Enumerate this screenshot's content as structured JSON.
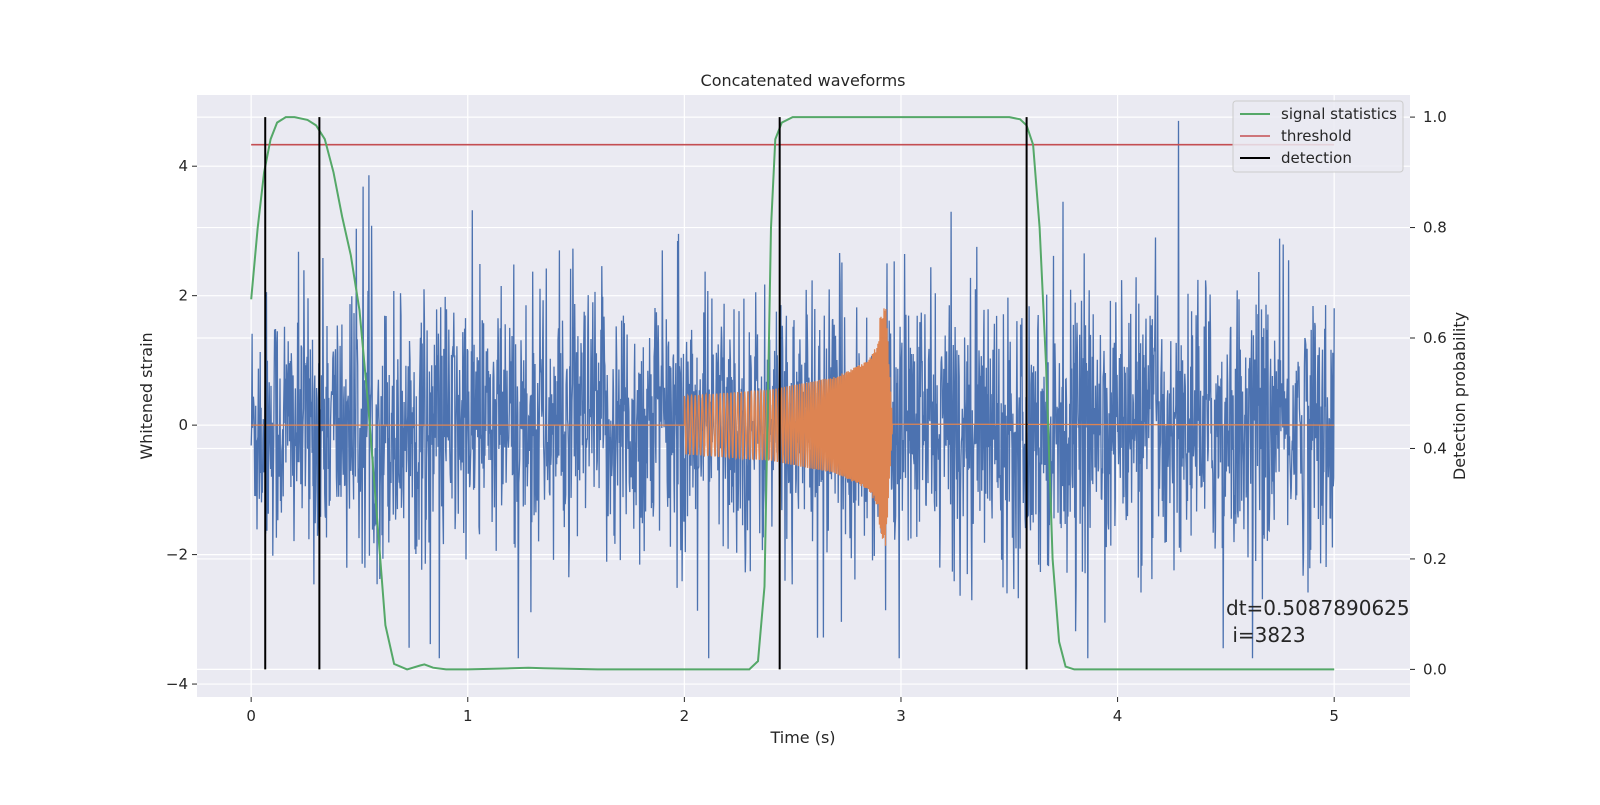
{
  "chart_data": {
    "type": "line",
    "title": "Concatenated waveforms",
    "xlabel": "Time (s)",
    "ylabel_left": "Whitened strain",
    "ylabel_right": "Detection probability",
    "xlim": [
      -0.25,
      5.35
    ],
    "ylim_left": [
      -4.2,
      5.1
    ],
    "ylim_right": [
      -0.05,
      1.04
    ],
    "x_ticks": [
      0,
      1,
      2,
      3,
      4,
      5
    ],
    "x_tick_labels": [
      "0",
      "1",
      "2",
      "3",
      "4",
      "5"
    ],
    "y_left_ticks": [
      -4,
      -2,
      0,
      2,
      4
    ],
    "y_left_tick_labels": [
      "−4",
      "−2",
      "0",
      "2",
      "4"
    ],
    "y_right_ticks": [
      0.0,
      0.2,
      0.4,
      0.6,
      0.8,
      1.0
    ],
    "y_right_tick_labels": [
      "0.0",
      "0.2",
      "0.4",
      "0.6",
      "0.8",
      "1.0"
    ],
    "grid": true,
    "legend_position": "top-right",
    "colors": {
      "background": "#EAEAF2",
      "grid": "#FFFFFF",
      "noise": "#4C72B0",
      "injection": "#DD8452",
      "signal_statistics": "#55A868",
      "threshold": "#C44E52",
      "detection": "#000000"
    },
    "series": [
      {
        "name": "",
        "axis": "left",
        "description_kind": "noise",
        "x_range": [
          0,
          5
        ],
        "amplitude_typical": 1.3,
        "amplitude_peak": 4.7
      },
      {
        "name": "",
        "axis": "left",
        "description_kind": "chirp",
        "x_range": [
          2.0,
          2.95
        ],
        "envelope": [
          [
            2.0,
            0.45
          ],
          [
            2.4,
            0.55
          ],
          [
            2.7,
            0.75
          ],
          [
            2.85,
            1.0
          ],
          [
            2.93,
            1.5
          ],
          [
            2.96,
            0.05
          ]
        ]
      },
      {
        "name": "signal statistics",
        "axis": "right",
        "x": [
          0.0,
          0.03,
          0.06,
          0.09,
          0.12,
          0.16,
          0.2,
          0.26,
          0.3,
          0.34,
          0.38,
          0.42,
          0.46,
          0.5,
          0.54,
          0.58,
          0.62,
          0.66,
          0.72,
          0.78,
          0.8,
          0.84,
          0.9,
          1.0,
          1.2,
          1.28,
          1.35,
          1.6,
          2.0,
          2.3,
          2.34,
          2.37,
          2.4,
          2.42,
          2.45,
          2.5,
          2.6,
          3.0,
          3.4,
          3.5,
          3.55,
          3.58,
          3.61,
          3.64,
          3.67,
          3.7,
          3.73,
          3.76,
          3.8,
          4.2,
          5.0
        ],
        "y": [
          0.67,
          0.8,
          0.9,
          0.96,
          0.99,
          1.0,
          1.0,
          0.995,
          0.985,
          0.96,
          0.9,
          0.82,
          0.75,
          0.65,
          0.48,
          0.28,
          0.08,
          0.01,
          0.0,
          0.007,
          0.009,
          0.003,
          0.0,
          0.0,
          0.002,
          0.003,
          0.002,
          0.0,
          0.0,
          0.0,
          0.015,
          0.15,
          0.8,
          0.96,
          0.99,
          1.0,
          1.0,
          1.0,
          1.0,
          1.0,
          0.996,
          0.985,
          0.95,
          0.8,
          0.55,
          0.2,
          0.05,
          0.005,
          0.0,
          0.0,
          0.0
        ]
      },
      {
        "name": "threshold",
        "axis": "right",
        "x": [
          0,
          5
        ],
        "y": [
          0.95,
          0.95
        ]
      },
      {
        "name": "detection",
        "axis": "right",
        "type": "vlines",
        "x": [
          0.065,
          0.315,
          2.44,
          3.58
        ],
        "ymin": 0.0,
        "ymax": 1.0
      }
    ],
    "annotation": {
      "line1": "dt=0.5087890625",
      "line2": " i=3823"
    }
  }
}
